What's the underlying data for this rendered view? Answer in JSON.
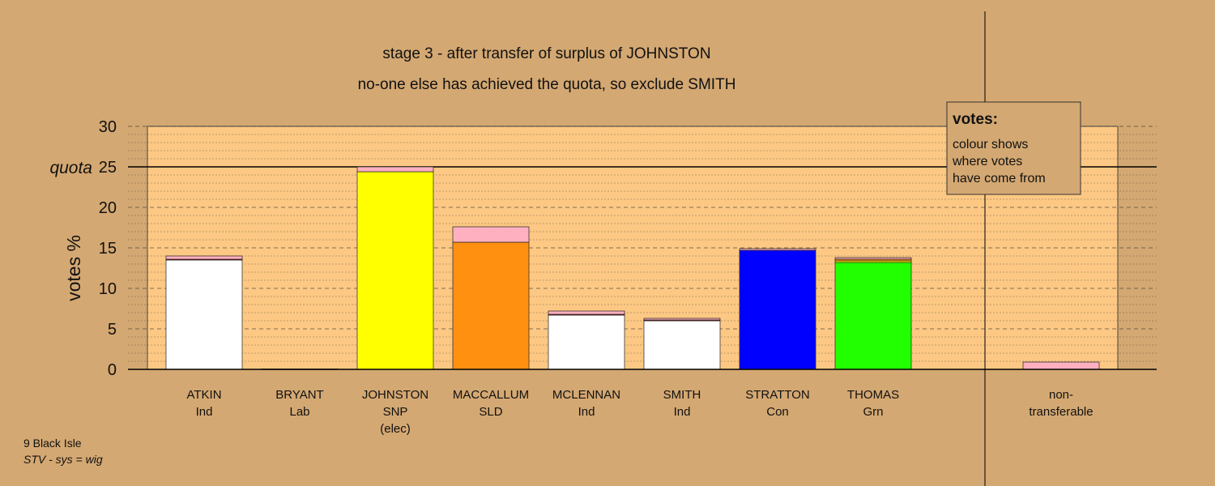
{
  "chart_data": {
    "type": "bar",
    "title": "stage 3 - after transfer of surplus of JOHNSTON",
    "subtitle": "no-one else has achieved the quota, so exclude SMITH",
    "ylabel": "votes %",
    "ylim": [
      0,
      30
    ],
    "yticks": [
      "0",
      "5",
      "10",
      "15",
      "20",
      "25",
      "30"
    ],
    "quota": {
      "label": "quota",
      "value": 25
    },
    "categories": [
      {
        "name": "ATKIN",
        "party": "Ind",
        "note": ""
      },
      {
        "name": "BRYANT",
        "party": "Lab",
        "note": ""
      },
      {
        "name": "JOHNSTON",
        "party": "SNP",
        "note": "(elec)"
      },
      {
        "name": "MACCALLUM",
        "party": "SLD",
        "note": ""
      },
      {
        "name": "MCLENNAN",
        "party": "Ind",
        "note": ""
      },
      {
        "name": "SMITH",
        "party": "Ind",
        "note": ""
      },
      {
        "name": "STRATTON",
        "party": "Con",
        "note": ""
      },
      {
        "name": "THOMAS",
        "party": "Grn",
        "note": ""
      }
    ],
    "nontransferable": {
      "label1": "non-",
      "label2": "transferable",
      "value": 0.9,
      "color": "#ffb0c0"
    },
    "bars": [
      {
        "segments": [
          {
            "value": 13.5,
            "color": "#ffffff"
          },
          {
            "value": 0.1,
            "color": "#ff0000"
          },
          {
            "value": 0.4,
            "color": "#ffb0c0"
          }
        ]
      },
      {
        "segments": [
          {
            "value": 0.05,
            "color": "#ff0000"
          }
        ]
      },
      {
        "segments": [
          {
            "value": 24.4,
            "color": "#ffff00"
          },
          {
            "value": 0.6,
            "color": "#ffb0c0"
          }
        ]
      },
      {
        "segments": [
          {
            "value": 15.7,
            "color": "#ff9010"
          },
          {
            "value": 1.9,
            "color": "#ffb0c0"
          }
        ]
      },
      {
        "segments": [
          {
            "value": 6.7,
            "color": "#ffffff"
          },
          {
            "value": 0.1,
            "color": "#ff0000"
          },
          {
            "value": 0.4,
            "color": "#ffb0c0"
          }
        ]
      },
      {
        "segments": [
          {
            "value": 6.0,
            "color": "#ffffff"
          },
          {
            "value": 0.1,
            "color": "#ff0000"
          },
          {
            "value": 0.2,
            "color": "#ffb0c0"
          }
        ]
      },
      {
        "segments": [
          {
            "value": 14.7,
            "color": "#0000ff"
          },
          {
            "value": 0.2,
            "color": "#ffb0c0"
          }
        ]
      },
      {
        "segments": [
          {
            "value": 13.2,
            "color": "#22ff00"
          },
          {
            "value": 0.2,
            "color": "#ffff00"
          },
          {
            "value": 0.2,
            "color": "#ff9010"
          },
          {
            "value": 0.2,
            "color": "#ffb0c0"
          }
        ]
      }
    ],
    "legend": {
      "title": "votes:",
      "lines": [
        "colour shows",
        "where votes",
        "have come from"
      ],
      "placement": "top-right"
    },
    "grid": true
  },
  "footer": {
    "line1": "9 Black Isle",
    "line2": "STV - sys = wig"
  },
  "colors": {
    "background": "#d4a872",
    "plot_area": "#fcc883"
  }
}
